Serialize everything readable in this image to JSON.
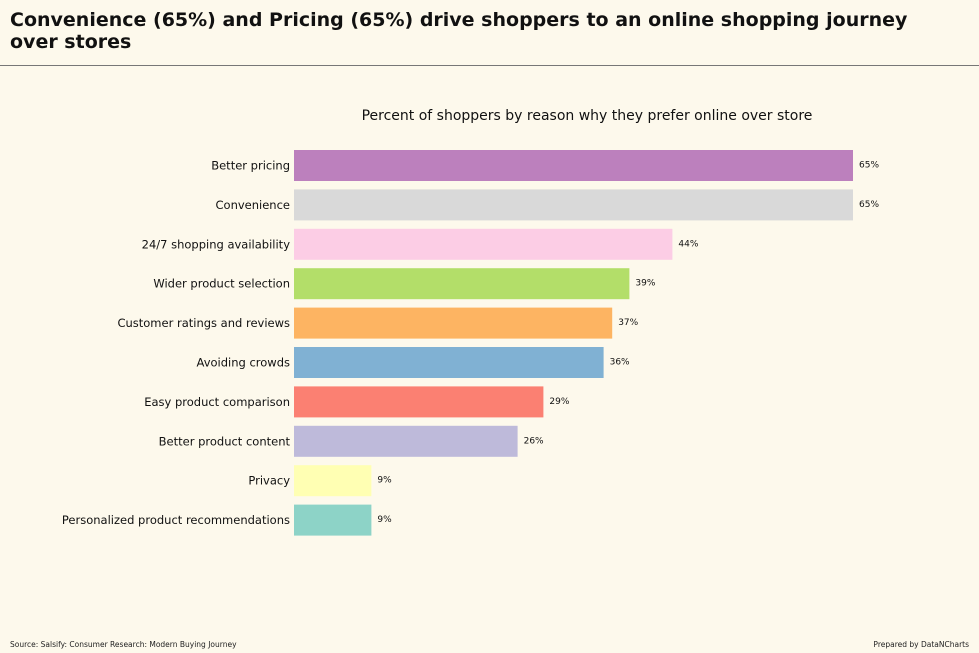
{
  "header": {
    "title": "Convenience (65%) and Pricing (65%) drive shoppers to an online shopping journey over stores"
  },
  "footer": {
    "source": "Source: Salsify: Consumer Research: Modern Buying Journey",
    "credit": "Prepared by DataNCharts"
  },
  "chart_data": {
    "type": "bar",
    "orientation": "horizontal",
    "title": "Percent of shoppers by reason why they prefer online over store",
    "xlabel": "",
    "ylabel": "",
    "xlim": [
      0,
      70
    ],
    "grid": false,
    "categories": [
      "Better pricing",
      "Convenience",
      "24/7 shopping availability",
      "Wider product selection",
      "Customer ratings and reviews",
      "Avoiding crowds",
      "Easy product comparison",
      "Better product content",
      "Privacy",
      "Personalized product recommendations"
    ],
    "values": [
      65,
      65,
      44,
      39,
      37,
      36,
      29,
      26,
      9,
      9
    ],
    "value_labels": [
      "65%",
      "65%",
      "44%",
      "39%",
      "37%",
      "36%",
      "29%",
      "26%",
      "9%",
      "9%"
    ],
    "colors": [
      "#bc80bd",
      "#d9d9d9",
      "#fccde5",
      "#b3de69",
      "#fdb462",
      "#80b1d3",
      "#fb8072",
      "#bebada",
      "#ffffb3",
      "#8dd3c7"
    ]
  }
}
